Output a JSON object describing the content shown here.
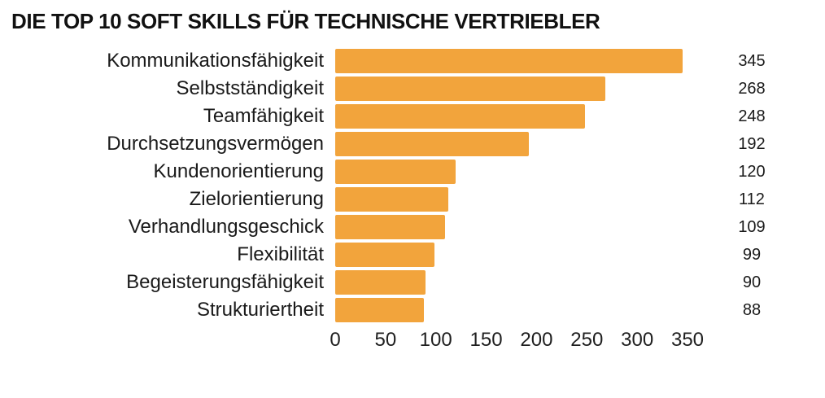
{
  "title": "DIE TOP 10 SOFT SKILLS FÜR TECHNISCHE VERTRIEBLER",
  "colors": {
    "bar": "#F2A43C",
    "title_text": "#111111",
    "label_text": "#1A1A1A",
    "background": "#FFFFFF"
  },
  "chart_data": {
    "type": "bar",
    "orientation": "horizontal",
    "title": "DIE TOP 10 SOFT SKILLS FÜR TECHNISCHE VERTRIEBLER",
    "categories": [
      "Kommunikationsfähigkeit",
      "Selbstständigkeit",
      "Teamfähigkeit",
      "Durchsetzungsvermögen",
      "Kundenorientierung",
      "Zielorientierung",
      "Verhandlungsgeschick",
      "Flexibilität",
      "Begeisterungsfähigkeit",
      "Strukturiertheit"
    ],
    "values": [
      345,
      268,
      248,
      192,
      120,
      112,
      109,
      99,
      90,
      88
    ],
    "value_labels_shown": true,
    "xlabel": "",
    "ylabel": "",
    "xlim": [
      0,
      350
    ],
    "xticks": [
      0,
      50,
      100,
      150,
      200,
      250,
      300,
      350
    ],
    "grid": false,
    "legend": false,
    "bar_color": "#F2A43C"
  }
}
